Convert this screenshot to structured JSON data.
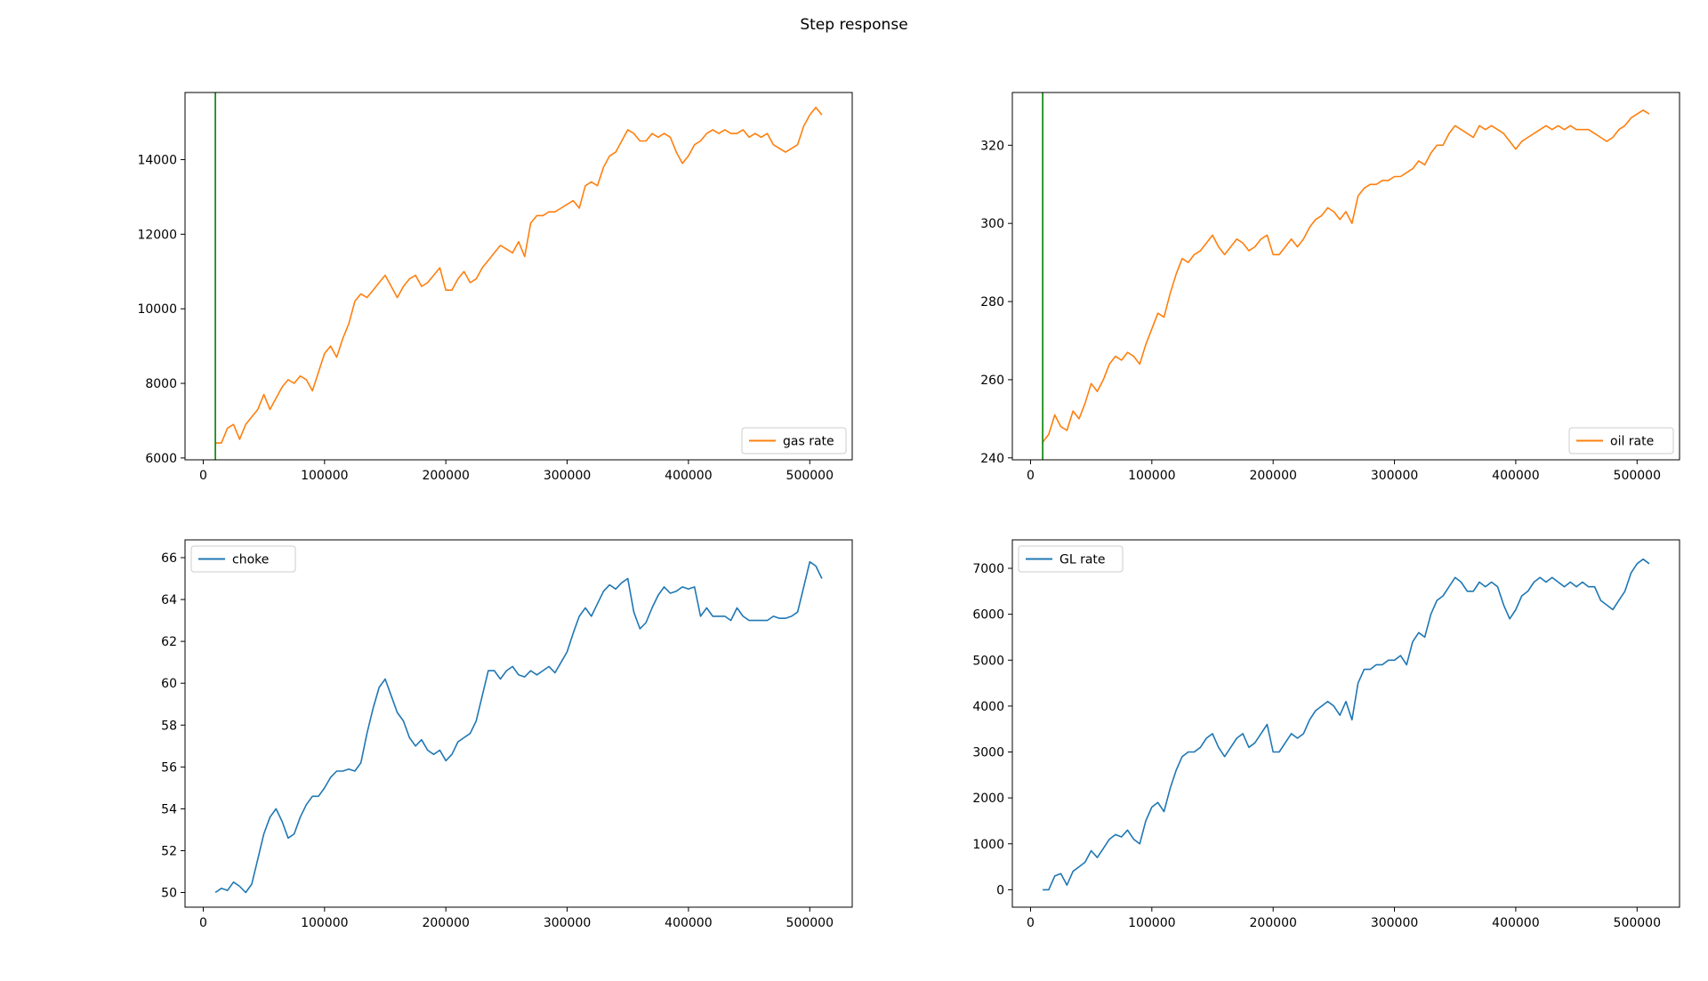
{
  "figure": {
    "title": "Step response"
  },
  "chart_data": [
    {
      "type": "line",
      "title": "",
      "xlabel": "",
      "ylabel": "",
      "xlim": [
        -15000,
        535000
      ],
      "ylim": [
        5950,
        15800
      ],
      "xticks": [
        0,
        100000,
        200000,
        300000,
        400000,
        500000
      ],
      "yticks": [
        6000,
        8000,
        10000,
        12000,
        14000
      ],
      "legend": "lower right",
      "step_marker_x": 10000,
      "series": [
        {
          "name": "gas rate",
          "color": "#ff7f0e",
          "x": [
            10000,
            15000,
            20000,
            25000,
            30000,
            35000,
            40000,
            45000,
            50000,
            55000,
            60000,
            65000,
            70000,
            75000,
            80000,
            85000,
            90000,
            95000,
            100000,
            105000,
            110000,
            115000,
            120000,
            125000,
            130000,
            135000,
            140000,
            145000,
            150000,
            155000,
            160000,
            165000,
            170000,
            175000,
            180000,
            185000,
            190000,
            195000,
            200000,
            205000,
            210000,
            215000,
            220000,
            225000,
            230000,
            235000,
            240000,
            245000,
            250000,
            255000,
            260000,
            265000,
            270000,
            275000,
            280000,
            285000,
            290000,
            295000,
            300000,
            305000,
            310000,
            315000,
            320000,
            325000,
            330000,
            335000,
            340000,
            345000,
            350000,
            355000,
            360000,
            365000,
            370000,
            375000,
            380000,
            385000,
            390000,
            395000,
            400000,
            405000,
            410000,
            415000,
            420000,
            425000,
            430000,
            435000,
            440000,
            445000,
            450000,
            455000,
            460000,
            465000,
            470000,
            475000,
            480000,
            485000,
            490000,
            495000,
            500000,
            505000,
            510000
          ],
          "y": [
            6400,
            6400,
            6800,
            6900,
            6500,
            6900,
            7100,
            7300,
            7700,
            7300,
            7600,
            7900,
            8100,
            8000,
            8200,
            8100,
            7800,
            8300,
            8800,
            9000,
            8700,
            9200,
            9600,
            10200,
            10400,
            10300,
            10500,
            10700,
            10900,
            10600,
            10300,
            10600,
            10800,
            10900,
            10600,
            10700,
            10900,
            11100,
            10500,
            10500,
            10800,
            11000,
            10700,
            10800,
            11100,
            11300,
            11500,
            11700,
            11600,
            11500,
            11800,
            11400,
            12300,
            12500,
            12500,
            12600,
            12600,
            12700,
            12800,
            12900,
            12700,
            13300,
            13400,
            13300,
            13800,
            14100,
            14200,
            14500,
            14800,
            14700,
            14500,
            14500,
            14700,
            14600,
            14700,
            14600,
            14200,
            13900,
            14100,
            14400,
            14500,
            14700,
            14800,
            14700,
            14800,
            14700,
            14700,
            14800,
            14600,
            14700,
            14600,
            14700,
            14400,
            14300,
            14200,
            14300,
            14400,
            14900,
            15200,
            15400,
            15200
          ]
        }
      ]
    },
    {
      "type": "line",
      "title": "",
      "xlabel": "",
      "ylabel": "",
      "xlim": [
        -15000,
        535000
      ],
      "ylim": [
        239.5,
        333.5
      ],
      "xticks": [
        0,
        100000,
        200000,
        300000,
        400000,
        500000
      ],
      "yticks": [
        240,
        260,
        280,
        300,
        320
      ],
      "legend": "lower right",
      "step_marker_x": 10000,
      "series": [
        {
          "name": "oil rate",
          "color": "#ff7f0e",
          "x": [
            10000,
            15000,
            20000,
            25000,
            30000,
            35000,
            40000,
            45000,
            50000,
            55000,
            60000,
            65000,
            70000,
            75000,
            80000,
            85000,
            90000,
            95000,
            100000,
            105000,
            110000,
            115000,
            120000,
            125000,
            130000,
            135000,
            140000,
            145000,
            150000,
            155000,
            160000,
            165000,
            170000,
            175000,
            180000,
            185000,
            190000,
            195000,
            200000,
            205000,
            210000,
            215000,
            220000,
            225000,
            230000,
            235000,
            240000,
            245000,
            250000,
            255000,
            260000,
            265000,
            270000,
            275000,
            280000,
            285000,
            290000,
            295000,
            300000,
            305000,
            310000,
            315000,
            320000,
            325000,
            330000,
            335000,
            340000,
            345000,
            350000,
            355000,
            360000,
            365000,
            370000,
            375000,
            380000,
            385000,
            390000,
            395000,
            400000,
            405000,
            410000,
            415000,
            420000,
            425000,
            430000,
            435000,
            440000,
            445000,
            450000,
            455000,
            460000,
            465000,
            470000,
            475000,
            480000,
            485000,
            490000,
            495000,
            500000,
            505000,
            510000
          ],
          "y": [
            244,
            246,
            251,
            248,
            247,
            252,
            250,
            254,
            259,
            257,
            260,
            264,
            266,
            265,
            267,
            266,
            264,
            269,
            273,
            277,
            276,
            282,
            287,
            291,
            290,
            292,
            293,
            295,
            297,
            294,
            292,
            294,
            296,
            295,
            293,
            294,
            296,
            297,
            292,
            292,
            294,
            296,
            294,
            296,
            299,
            301,
            302,
            304,
            303,
            301,
            303,
            300,
            307,
            309,
            310,
            310,
            311,
            311,
            312,
            312,
            313,
            314,
            316,
            315,
            318,
            320,
            320,
            323,
            325,
            324,
            323,
            322,
            325,
            324,
            325,
            324,
            323,
            321,
            319,
            321,
            322,
            323,
            324,
            325,
            324,
            325,
            324,
            325,
            324,
            324,
            324,
            323,
            322,
            321,
            322,
            324,
            325,
            327,
            328,
            329,
            328
          ]
        }
      ]
    },
    {
      "type": "line",
      "title": "",
      "xlabel": "",
      "ylabel": "",
      "xlim": [
        -15000,
        535000
      ],
      "ylim": [
        49.3,
        66.85
      ],
      "xticks": [
        0,
        100000,
        200000,
        300000,
        400000,
        500000
      ],
      "yticks": [
        50,
        52,
        54,
        56,
        58,
        60,
        62,
        64,
        66
      ],
      "legend": "upper left",
      "series": [
        {
          "name": "choke",
          "color": "#1f77b4",
          "x": [
            10000,
            15000,
            20000,
            25000,
            30000,
            35000,
            40000,
            45000,
            50000,
            55000,
            60000,
            65000,
            70000,
            75000,
            80000,
            85000,
            90000,
            95000,
            100000,
            105000,
            110000,
            115000,
            120000,
            125000,
            130000,
            135000,
            140000,
            145000,
            150000,
            155000,
            160000,
            165000,
            170000,
            175000,
            180000,
            185000,
            190000,
            195000,
            200000,
            205000,
            210000,
            215000,
            220000,
            225000,
            230000,
            235000,
            240000,
            245000,
            250000,
            255000,
            260000,
            265000,
            270000,
            275000,
            280000,
            285000,
            290000,
            295000,
            300000,
            305000,
            310000,
            315000,
            320000,
            325000,
            330000,
            335000,
            340000,
            345000,
            350000,
            355000,
            360000,
            365000,
            370000,
            375000,
            380000,
            385000,
            390000,
            395000,
            400000,
            405000,
            410000,
            415000,
            420000,
            425000,
            430000,
            435000,
            440000,
            445000,
            450000,
            455000,
            460000,
            465000,
            470000,
            475000,
            480000,
            485000,
            490000,
            495000,
            500000,
            505000,
            510000
          ],
          "y": [
            50,
            50.2,
            50.1,
            50.5,
            50.3,
            50,
            50.4,
            51.6,
            52.8,
            53.6,
            54,
            53.4,
            52.6,
            52.8,
            53.6,
            54.2,
            54.6,
            54.6,
            55,
            55.5,
            55.8,
            55.8,
            55.9,
            55.8,
            56.2,
            57.6,
            58.8,
            59.8,
            60.2,
            59.4,
            58.6,
            58.2,
            57.4,
            57,
            57.3,
            56.8,
            56.6,
            56.8,
            56.3,
            56.6,
            57.2,
            57.4,
            57.6,
            58.2,
            59.4,
            60.6,
            60.6,
            60.2,
            60.6,
            60.8,
            60.4,
            60.3,
            60.6,
            60.4,
            60.6,
            60.8,
            60.5,
            61,
            61.5,
            62.4,
            63.2,
            63.6,
            63.2,
            63.8,
            64.4,
            64.7,
            64.5,
            64.8,
            65,
            63.4,
            62.6,
            62.9,
            63.6,
            64.2,
            64.6,
            64.3,
            64.4,
            64.6,
            64.5,
            64.6,
            63.2,
            63.6,
            63.2,
            63.2,
            63.2,
            63,
            63.6,
            63.2,
            63,
            63,
            63,
            63,
            63.2,
            63.1,
            63.1,
            63.2,
            63.4,
            64.6,
            65.8,
            65.6,
            65
          ]
        }
      ]
    },
    {
      "type": "line",
      "title": "",
      "xlabel": "",
      "ylabel": "",
      "xlim": [
        -15000,
        535000
      ],
      "ylim": [
        -380,
        7620
      ],
      "xticks": [
        0,
        100000,
        200000,
        300000,
        400000,
        500000
      ],
      "yticks": [
        0,
        1000,
        2000,
        3000,
        4000,
        5000,
        6000,
        7000
      ],
      "legend": "upper left",
      "series": [
        {
          "name": "GL rate",
          "color": "#1f77b4",
          "x": [
            10000,
            15000,
            20000,
            25000,
            30000,
            35000,
            40000,
            45000,
            50000,
            55000,
            60000,
            65000,
            70000,
            75000,
            80000,
            85000,
            90000,
            95000,
            100000,
            105000,
            110000,
            115000,
            120000,
            125000,
            130000,
            135000,
            140000,
            145000,
            150000,
            155000,
            160000,
            165000,
            170000,
            175000,
            180000,
            185000,
            190000,
            195000,
            200000,
            205000,
            210000,
            215000,
            220000,
            225000,
            230000,
            235000,
            240000,
            245000,
            250000,
            255000,
            260000,
            265000,
            270000,
            275000,
            280000,
            285000,
            290000,
            295000,
            300000,
            305000,
            310000,
            315000,
            320000,
            325000,
            330000,
            335000,
            340000,
            345000,
            350000,
            355000,
            360000,
            365000,
            370000,
            375000,
            380000,
            385000,
            390000,
            395000,
            400000,
            405000,
            410000,
            415000,
            420000,
            425000,
            430000,
            435000,
            440000,
            445000,
            450000,
            455000,
            460000,
            465000,
            470000,
            475000,
            480000,
            485000,
            490000,
            495000,
            500000,
            505000,
            510000
          ],
          "y": [
            0,
            0,
            300,
            350,
            100,
            400,
            500,
            600,
            850,
            700,
            900,
            1100,
            1200,
            1150,
            1300,
            1100,
            1000,
            1500,
            1800,
            1900,
            1700,
            2200,
            2600,
            2900,
            3000,
            3000,
            3100,
            3300,
            3400,
            3100,
            2900,
            3100,
            3300,
            3400,
            3100,
            3200,
            3400,
            3600,
            3000,
            3000,
            3200,
            3400,
            3300,
            3400,
            3700,
            3900,
            4000,
            4100,
            4000,
            3800,
            4100,
            3700,
            4500,
            4800,
            4800,
            4900,
            4900,
            5000,
            5000,
            5100,
            4900,
            5400,
            5600,
            5500,
            6000,
            6300,
            6400,
            6600,
            6800,
            6700,
            6500,
            6500,
            6700,
            6600,
            6700,
            6600,
            6200,
            5900,
            6100,
            6400,
            6500,
            6700,
            6800,
            6700,
            6800,
            6700,
            6600,
            6700,
            6600,
            6700,
            6600,
            6600,
            6300,
            6200,
            6100,
            6300,
            6500,
            6900,
            7100,
            7200,
            7100
          ]
        }
      ]
    }
  ]
}
